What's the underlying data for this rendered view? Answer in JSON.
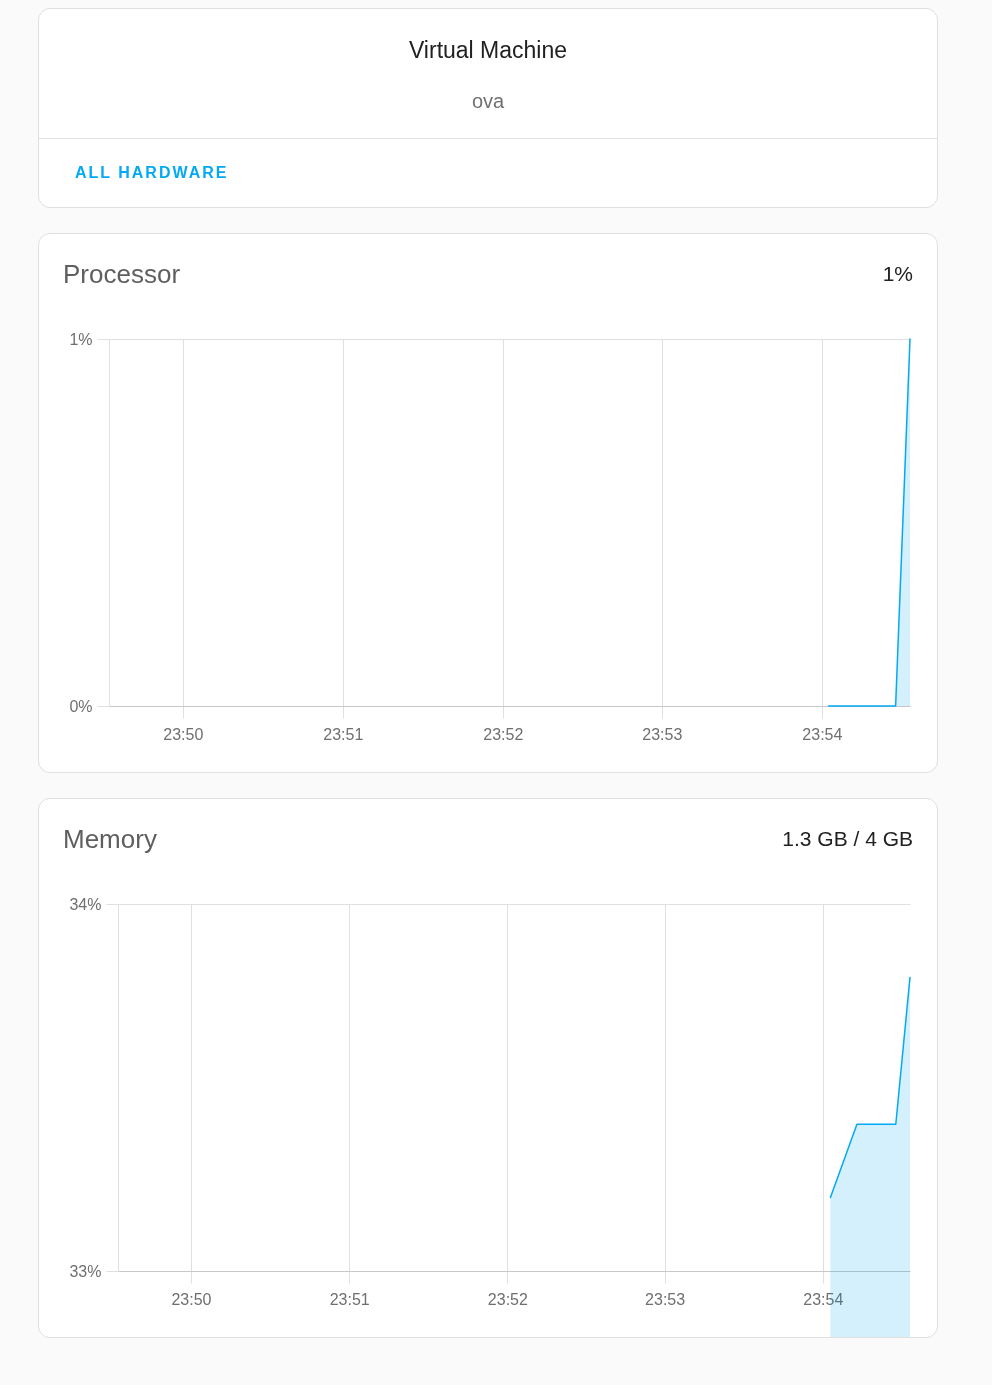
{
  "chart_data": [
    {
      "type": "other",
      "title": "Virtual Machine",
      "subtitle": "ova",
      "annotations": [
        "ALL HARDWARE"
      ]
    },
    {
      "type": "area",
      "title": "Processor",
      "annotations": [
        "1%"
      ],
      "x": [
        23.9007,
        23.9077,
        23.9092
      ],
      "values": [
        0,
        0,
        1
      ],
      "color": "#03a9f4",
      "xlim": [
        23.8256,
        23.9092
      ],
      "xticks": [
        {
          "value": 23.8333,
          "label": "23:50"
        },
        {
          "value": 23.85,
          "label": "23:51"
        },
        {
          "value": 23.8667,
          "label": "23:52"
        },
        {
          "value": 23.8833,
          "label": "23:53"
        },
        {
          "value": 23.9,
          "label": "23:54"
        }
      ],
      "ylim": [
        0,
        1
      ],
      "yticks": [
        {
          "value": 0,
          "label": "0%"
        },
        {
          "value": 1,
          "label": "1%"
        }
      ],
      "grid": true
    },
    {
      "type": "area",
      "title": "Memory",
      "annotations": [
        "1.3 GB / 4 GB"
      ],
      "x": [
        23.9008,
        23.9036,
        23.9077,
        23.9092
      ],
      "values": [
        33.2,
        33.4,
        33.4,
        33.8
      ],
      "color": "#03a9f4",
      "xlim": [
        23.8256,
        23.9092
      ],
      "xticks": [
        {
          "value": 23.8333,
          "label": "23:50"
        },
        {
          "value": 23.85,
          "label": "23:51"
        },
        {
          "value": 23.8667,
          "label": "23:52"
        },
        {
          "value": 23.8833,
          "label": "23:53"
        },
        {
          "value": 23.9,
          "label": "23:54"
        }
      ],
      "ylim": [
        33,
        34
      ],
      "yticks": [
        {
          "value": 33,
          "label": "33%"
        },
        {
          "value": 34,
          "label": "34%"
        }
      ],
      "grid": true
    }
  ]
}
